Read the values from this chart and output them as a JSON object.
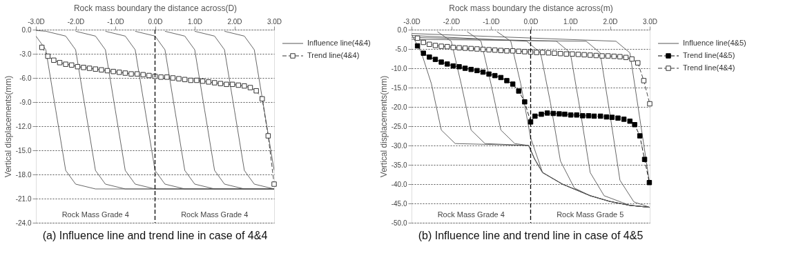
{
  "chart_data": [
    {
      "type": "line",
      "title": "(a) Influence line and trend line in case of 4&4",
      "xlabel": "Rock mass boundary the distance across(D)",
      "ylabel": "Vertical displacements(mm)",
      "xlim": [
        -3,
        3
      ],
      "xticks": [
        {
          "value": -3,
          "label": "-3.0D"
        },
        {
          "value": -2,
          "label": "-2.0D"
        },
        {
          "value": -1,
          "label": "-1.0D"
        },
        {
          "value": 0,
          "label": "0.0D"
        },
        {
          "value": 1,
          "label": "1.0D"
        },
        {
          "value": 2,
          "label": "2.0D"
        },
        {
          "value": 3,
          "label": "3.0D"
        }
      ],
      "ylim": [
        -24,
        0
      ],
      "yticks": [
        {
          "value": 0,
          "label": "0.0"
        },
        {
          "value": -3,
          "label": "-3.0"
        },
        {
          "value": -6,
          "label": "-6.0"
        },
        {
          "value": -9,
          "label": "-9.0"
        },
        {
          "value": -12,
          "label": "-12.0"
        },
        {
          "value": -15,
          "label": "-15.0"
        },
        {
          "value": -18,
          "label": "-18.0"
        },
        {
          "value": -21,
          "label": "-21.0"
        },
        {
          "value": -24,
          "label": "-24.0"
        }
      ],
      "grid": "y",
      "legend": "right",
      "marker": "none",
      "line_style": "solid",
      "series": [
        {
          "name": "Influence line(4&4)",
          "color": "#555555",
          "x": [
            -3.0,
            -2.75,
            -2.5,
            -2.25,
            -2.0,
            -1.5,
            3.0
          ],
          "values": [
            -0.8,
            -2.5,
            -10,
            -17.5,
            -19.2,
            -19.8,
            -19.8
          ]
        },
        {
          "color": "#555555",
          "x": [
            -3.0,
            -2.75,
            -2.25,
            -2.0,
            -1.75,
            -1.5,
            -1.25,
            -0.75,
            3.0
          ],
          "values": [
            -0.1,
            -0.2,
            -0.8,
            -2.5,
            -10,
            -17.5,
            -19.2,
            -19.8,
            -19.8
          ]
        },
        {
          "color": "#555555",
          "x": [
            -2.0,
            -1.5,
            -1.25,
            -1.0,
            -0.75,
            -0.5,
            0.0,
            3.0
          ],
          "values": [
            -0.2,
            -0.8,
            -2.5,
            -10,
            -17.5,
            -19.2,
            -19.8,
            -19.8
          ]
        },
        {
          "color": "#555555",
          "x": [
            -1.25,
            -0.75,
            -0.5,
            -0.25,
            0.0,
            0.25,
            0.75,
            3.0
          ],
          "values": [
            -0.2,
            -0.8,
            -2.5,
            -10,
            -17.5,
            -19.2,
            -19.8,
            -19.8
          ]
        },
        {
          "color": "#555555",
          "x": [
            -0.5,
            0.0,
            0.25,
            0.5,
            0.75,
            1.0,
            1.5,
            3.0
          ],
          "values": [
            -0.2,
            -0.8,
            -2.5,
            -10,
            -17.5,
            -19.2,
            -19.8,
            -19.8
          ]
        },
        {
          "color": "#555555",
          "x": [
            0.25,
            0.75,
            1.0,
            1.25,
            1.5,
            1.75,
            2.25,
            3.0
          ],
          "values": [
            -0.2,
            -0.8,
            -2.5,
            -10,
            -17.5,
            -19.2,
            -19.8,
            -19.8
          ]
        },
        {
          "color": "#555555",
          "x": [
            1.0,
            1.5,
            1.75,
            2.0,
            2.25,
            2.5,
            3.0
          ],
          "values": [
            -0.2,
            -0.8,
            -2.5,
            -10,
            -17.5,
            -19.2,
            -19.8
          ]
        },
        {
          "color": "#555555",
          "x": [
            1.75,
            2.25,
            2.5,
            2.75,
            3.0
          ],
          "values": [
            -0.2,
            -0.8,
            -2.5,
            -10,
            -17.5
          ]
        },
        {
          "name": "Trend line(4&4)",
          "color": "#ffffff",
          "marker": "square",
          "line_style": "dashed",
          "x": [
            -2.85,
            -2.7,
            -2.55,
            -2.4,
            -2.25,
            -2.1,
            -1.95,
            -1.8,
            -1.65,
            -1.5,
            -1.35,
            -1.2,
            -1.05,
            -0.9,
            -0.75,
            -0.6,
            -0.45,
            -0.3,
            -0.15,
            0.0,
            0.15,
            0.3,
            0.45,
            0.6,
            0.75,
            0.9,
            1.05,
            1.2,
            1.35,
            1.5,
            1.65,
            1.8,
            1.95,
            2.1,
            2.25,
            2.4,
            2.55,
            2.7,
            2.85,
            3.0
          ],
          "values": [
            -2.2,
            -3.3,
            -3.8,
            -4.1,
            -4.3,
            -4.4,
            -4.6,
            -4.7,
            -4.8,
            -4.9,
            -5.0,
            -5.1,
            -5.2,
            -5.3,
            -5.4,
            -5.5,
            -5.5,
            -5.6,
            -5.7,
            -5.8,
            -5.9,
            -5.9,
            -6.0,
            -6.1,
            -6.2,
            -6.3,
            -6.3,
            -6.4,
            -6.5,
            -6.6,
            -6.7,
            -6.8,
            -6.8,
            -6.9,
            -7.0,
            -7.2,
            -7.6,
            -8.6,
            -13.2,
            -19.2
          ]
        }
      ],
      "ref_lines": [
        {
          "axis": "x",
          "value": 0,
          "color": "#000000",
          "line_style": "dashed"
        }
      ],
      "annotations": [
        "Rock Mass Grade 4",
        "Rock Mass Grade 4"
      ]
    },
    {
      "type": "line",
      "title": "(b) Influence line and trend line in case of 4&5",
      "xlabel": "Rock mass boundary the distance across(m)",
      "ylabel": "Vertical displacements(mm)",
      "xlim": [
        -3,
        3
      ],
      "xticks": [
        {
          "value": -3,
          "label": "-3.0D"
        },
        {
          "value": -2,
          "label": "-2.0D"
        },
        {
          "value": -1,
          "label": "-1.0D"
        },
        {
          "value": 0,
          "label": "0.0D"
        },
        {
          "value": 1,
          "label": "1.0D"
        },
        {
          "value": 2,
          "label": "2.0D"
        },
        {
          "value": 3,
          "label": "3.0D"
        }
      ],
      "ylim": [
        -50,
        0
      ],
      "yticks": [
        {
          "value": 0,
          "label": "0.0"
        },
        {
          "value": -5,
          "label": "-5.0"
        },
        {
          "value": -10,
          "label": "-10.0"
        },
        {
          "value": -15,
          "label": "-15.0"
        },
        {
          "value": -20,
          "label": "-20.0"
        },
        {
          "value": -25,
          "label": "-25.0"
        },
        {
          "value": -30,
          "label": "-30.0"
        },
        {
          "value": -35,
          "label": "-35.0"
        },
        {
          "value": -40,
          "label": "-40.0"
        },
        {
          "value": -45,
          "label": "-45.0"
        },
        {
          "value": -50,
          "label": "-50.0"
        }
      ],
      "grid": "y",
      "legend": "right",
      "marker": "none",
      "line_style": "solid",
      "series": [
        {
          "name": "Influence line(4&5)",
          "color": "#555555",
          "x": [
            -3.0,
            -2.75,
            -2.5,
            -2.25,
            -1.9,
            -0.05,
            0.1,
            0.3,
            0.8,
            1.5,
            2.0,
            2.5,
            3.0
          ],
          "values": [
            -1.2,
            -6,
            -14,
            -26,
            -29.5,
            -30,
            -33.5,
            -37,
            -40,
            -43,
            -44.5,
            -45.5,
            -46
          ]
        },
        {
          "color": "#555555",
          "x": [
            -2.35,
            -2.0,
            -1.75,
            -1.5,
            -1.15,
            -0.05,
            0.1,
            0.3,
            0.8,
            1.5,
            2.0,
            2.5,
            3.0
          ],
          "values": [
            -0.5,
            -3,
            -14,
            -26,
            -29.5,
            -30,
            -33.5,
            -37,
            -40,
            -43,
            -44.5,
            -45.5,
            -46
          ]
        },
        {
          "color": "#555555",
          "x": [
            -1.6,
            -1.25,
            -1.0,
            -0.75,
            -0.4,
            -0.05,
            0.1,
            0.3,
            0.8,
            1.5,
            2.0,
            2.5,
            3.0
          ],
          "values": [
            -0.5,
            -3,
            -14,
            -26,
            -29.5,
            -30,
            -33.5,
            -37,
            -40,
            -43,
            -44.5,
            -45.5,
            -46
          ]
        },
        {
          "color": "#555555",
          "x": [
            -0.85,
            -0.5,
            -0.25,
            0.0,
            0.3,
            0.8,
            1.5,
            2.0,
            2.5,
            3.0
          ],
          "values": [
            -0.5,
            -3,
            -14,
            -28,
            -37,
            -40,
            -43,
            -44.5,
            -45.5,
            -46
          ]
        },
        {
          "color": "#555555",
          "x": [
            -3.0,
            -0.1,
            0.25,
            0.5,
            0.75,
            1.1,
            1.5,
            2.0,
            2.5,
            3.0
          ],
          "values": [
            -1.5,
            -3,
            -6,
            -19,
            -34,
            -41,
            -43,
            -44.5,
            -45.5,
            -46
          ]
        },
        {
          "color": "#555555",
          "x": [
            -3.0,
            0.65,
            1.0,
            1.25,
            1.5,
            1.85,
            2.5,
            3.0
          ],
          "values": [
            -2.0,
            -3,
            -6,
            -21,
            -37,
            -43,
            -45.5,
            -46
          ]
        },
        {
          "color": "#555555",
          "x": [
            -3.0,
            1.4,
            1.75,
            2.0,
            2.25,
            2.6,
            3.0
          ],
          "values": [
            -2.5,
            -3,
            -6,
            -22,
            -39,
            -44.6,
            -46
          ]
        },
        {
          "color": "#555555",
          "x": [
            -3.0,
            2.15,
            2.5,
            2.75,
            3.0
          ],
          "values": [
            -1.0,
            -3,
            -6,
            -23,
            -40
          ]
        },
        {
          "name": "Trend line(4&5)",
          "color": "#000000",
          "marker": "square",
          "line_style": "dashed",
          "x": [
            -2.85,
            -2.7,
            -2.55,
            -2.4,
            -2.25,
            -2.1,
            -1.95,
            -1.8,
            -1.65,
            -1.5,
            -1.35,
            -1.2,
            -1.05,
            -0.9,
            -0.75,
            -0.6,
            -0.45,
            -0.3,
            -0.15,
            0.0,
            0.11,
            0.27,
            0.42,
            0.57,
            0.72,
            0.86,
            1.01,
            1.16,
            1.31,
            1.46,
            1.6,
            1.76,
            1.91,
            2.05,
            2.2,
            2.35,
            2.5,
            2.62,
            2.75,
            2.87,
            2.99
          ],
          "values": [
            -4.2,
            -6.1,
            -7.1,
            -7.7,
            -8.4,
            -8.9,
            -9.4,
            -9.6,
            -10.0,
            -10.3,
            -10.6,
            -11.0,
            -11.5,
            -11.9,
            -12.4,
            -13.2,
            -14.1,
            -15.9,
            -18.7,
            -23.9,
            -22.4,
            -21.9,
            -21.6,
            -21.7,
            -21.8,
            -21.9,
            -22.1,
            -22.1,
            -22.3,
            -22.3,
            -22.4,
            -22.4,
            -22.6,
            -22.7,
            -22.9,
            -23.2,
            -23.7,
            -24.6,
            -27.5,
            -33.6,
            -39.6
          ]
        },
        {
          "name": "Trend line(4&4)",
          "color": "#ffffff",
          "marker": "square",
          "line_style": "dashed",
          "x": [
            -2.85,
            -2.7,
            -2.55,
            -2.4,
            -2.25,
            -2.1,
            -1.95,
            -1.8,
            -1.65,
            -1.5,
            -1.35,
            -1.2,
            -1.05,
            -0.9,
            -0.75,
            -0.6,
            -0.45,
            -0.3,
            -0.15,
            0.0,
            0.15,
            0.3,
            0.45,
            0.6,
            0.75,
            0.9,
            1.05,
            1.2,
            1.35,
            1.5,
            1.65,
            1.8,
            1.95,
            2.1,
            2.25,
            2.4,
            2.55,
            2.7,
            2.85,
            3.0
          ],
          "values": [
            -2.2,
            -3.3,
            -3.8,
            -4.1,
            -4.3,
            -4.4,
            -4.6,
            -4.7,
            -4.8,
            -4.9,
            -5.0,
            -5.1,
            -5.2,
            -5.3,
            -5.4,
            -5.5,
            -5.5,
            -5.6,
            -5.7,
            -5.8,
            -5.9,
            -5.9,
            -6.0,
            -6.1,
            -6.2,
            -6.3,
            -6.3,
            -6.4,
            -6.5,
            -6.6,
            -6.7,
            -6.8,
            -6.8,
            -6.9,
            -7.0,
            -7.2,
            -7.6,
            -8.6,
            -13.2,
            -19.2
          ]
        }
      ],
      "ref_lines": [
        {
          "axis": "x",
          "value": 0,
          "color": "#000000",
          "line_style": "dashed"
        }
      ],
      "annotations": [
        "Rock Mass Grade 4",
        "Rock Mass Grade 5"
      ]
    }
  ]
}
